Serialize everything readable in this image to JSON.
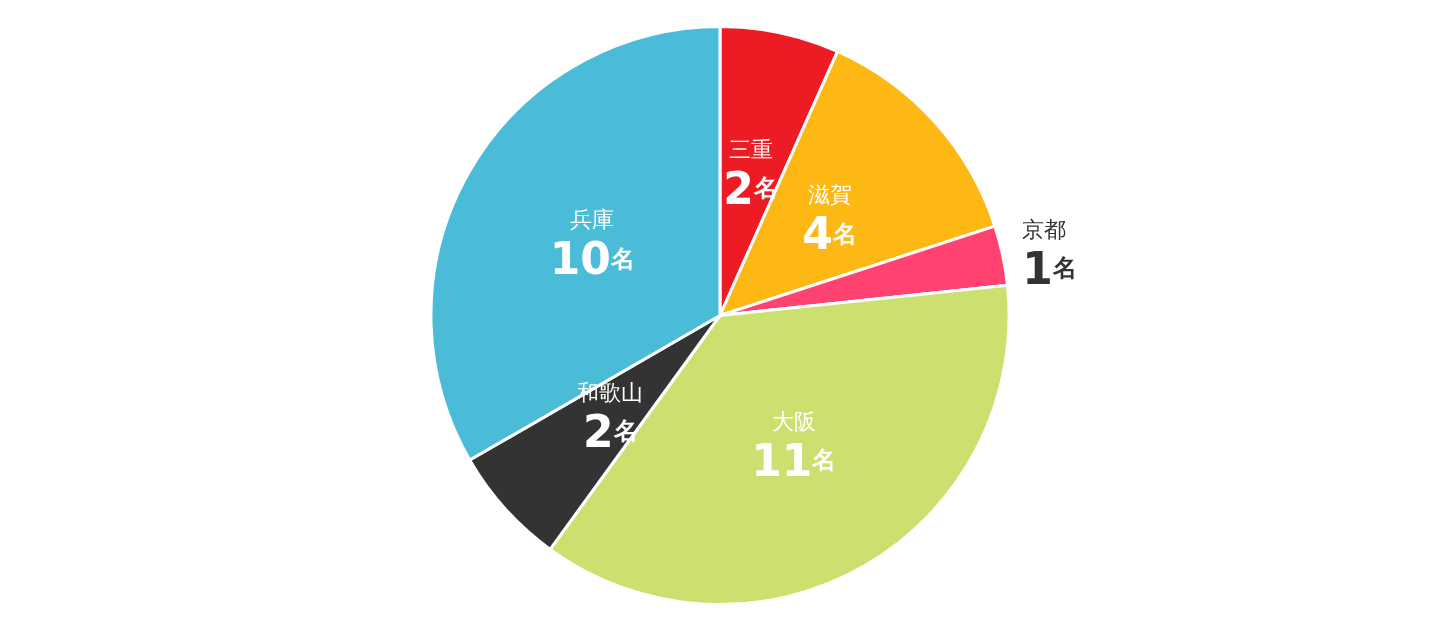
{
  "chart_data": {
    "type": "pie",
    "categories": [
      "三重",
      "滋賀",
      "京都",
      "大阪",
      "和歌山",
      "兵庫"
    ],
    "values": [
      2,
      4,
      1,
      11,
      2,
      10
    ],
    "value_labels": [
      "2名",
      "4名",
      "1名",
      "11名",
      "2名",
      "10名"
    ],
    "colors": [
      "#ed1c24",
      "#fdb813",
      "#ff426f",
      "#cce06f",
      "#333333",
      "#4bbcd8"
    ]
  }
}
